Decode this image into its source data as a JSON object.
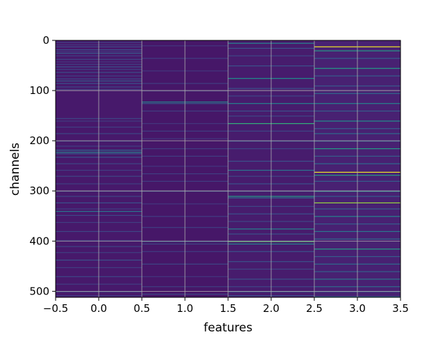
{
  "chart_data": {
    "type": "heatmap",
    "colormap": "viridis",
    "xlabel": "features",
    "ylabel": "channels",
    "xlim": [
      -0.5,
      3.5
    ],
    "ylim": [
      512,
      0
    ],
    "n_channels": 512,
    "n_features": 4,
    "grid": true,
    "x_ticks": [
      -0.5,
      0.0,
      0.5,
      1.0,
      1.5,
      2.0,
      2.5,
      3.0,
      3.5
    ],
    "x_tick_labels": [
      "−0.5",
      "0.0",
      "0.5",
      "1.0",
      "1.5",
      "2.0",
      "2.5",
      "3.0",
      "3.5"
    ],
    "y_ticks": [
      0,
      100,
      200,
      300,
      400,
      500
    ],
    "y_tick_labels": [
      "0",
      "100",
      "200",
      "300",
      "400",
      "500"
    ],
    "columns": [
      {
        "feature": 0,
        "base_value": 0.09,
        "bands": [
          [
            3,
            0.2
          ],
          [
            8,
            0.18
          ],
          [
            12,
            0.22
          ],
          [
            18,
            0.25
          ],
          [
            22,
            0.2
          ],
          [
            25,
            0.28
          ],
          [
            30,
            0.2
          ],
          [
            37,
            0.22
          ],
          [
            42,
            0.18
          ],
          [
            47,
            0.2
          ],
          [
            52,
            0.25
          ],
          [
            57,
            0.2
          ],
          [
            63,
            0.24
          ],
          [
            70,
            0.2
          ],
          [
            76,
            0.22
          ],
          [
            80,
            0.3
          ],
          [
            85,
            0.25
          ],
          [
            92,
            0.22
          ],
          [
            97,
            0.2
          ],
          [
            155,
            0.22
          ],
          [
            160,
            0.2
          ],
          [
            172,
            0.2
          ],
          [
            185,
            0.22
          ],
          [
            200,
            0.2
          ],
          [
            210,
            0.2
          ],
          [
            218,
            0.35
          ],
          [
            222,
            0.45
          ],
          [
            225,
            0.3
          ],
          [
            232,
            0.25
          ],
          [
            245,
            0.22
          ],
          [
            258,
            0.2
          ],
          [
            270,
            0.22
          ],
          [
            285,
            0.2
          ],
          [
            300,
            0.2
          ],
          [
            310,
            0.22
          ],
          [
            323,
            0.25
          ],
          [
            335,
            0.2
          ],
          [
            340,
            0.4
          ],
          [
            348,
            0.22
          ],
          [
            362,
            0.2
          ],
          [
            380,
            0.22
          ],
          [
            398,
            0.2
          ],
          [
            410,
            0.22
          ],
          [
            422,
            0.2
          ],
          [
            437,
            0.25
          ],
          [
            452,
            0.2
          ],
          [
            470,
            0.22
          ],
          [
            485,
            0.2
          ],
          [
            500,
            0.25
          ],
          [
            508,
            0.2
          ]
        ]
      },
      {
        "feature": 1,
        "base_value": 0.08,
        "bands": [
          [
            10,
            0.18
          ],
          [
            35,
            0.2
          ],
          [
            60,
            0.18
          ],
          [
            85,
            0.2
          ],
          [
            100,
            0.18
          ],
          [
            122,
            0.45
          ],
          [
            125,
            0.3
          ],
          [
            140,
            0.2
          ],
          [
            165,
            0.18
          ],
          [
            180,
            0.2
          ],
          [
            195,
            0.18
          ],
          [
            215,
            0.2
          ],
          [
            230,
            0.2
          ],
          [
            250,
            0.18
          ],
          [
            265,
            0.2
          ],
          [
            280,
            0.2
          ],
          [
            300,
            0.22
          ],
          [
            325,
            0.18
          ],
          [
            350,
            0.2
          ],
          [
            372,
            0.2
          ],
          [
            400,
            0.3
          ],
          [
            405,
            0.22
          ],
          [
            420,
            0.2
          ],
          [
            445,
            0.22
          ],
          [
            470,
            0.18
          ],
          [
            490,
            0.2
          ],
          [
            505,
            0.22
          ]
        ]
      },
      {
        "feature": 2,
        "base_value": 0.1,
        "bands": [
          [
            5,
            0.45
          ],
          [
            15,
            0.25
          ],
          [
            30,
            0.22
          ],
          [
            50,
            0.25
          ],
          [
            75,
            0.5
          ],
          [
            95,
            0.25
          ],
          [
            110,
            0.22
          ],
          [
            125,
            0.45
          ],
          [
            140,
            0.25
          ],
          [
            150,
            0.22
          ],
          [
            165,
            0.65
          ],
          [
            180,
            0.22
          ],
          [
            200,
            0.25
          ],
          [
            215,
            0.22
          ],
          [
            240,
            0.25
          ],
          [
            258,
            0.4
          ],
          [
            270,
            0.22
          ],
          [
            285,
            0.25
          ],
          [
            300,
            0.22
          ],
          [
            310,
            0.55
          ],
          [
            313,
            0.35
          ],
          [
            330,
            0.22
          ],
          [
            345,
            0.25
          ],
          [
            360,
            0.22
          ],
          [
            375,
            0.45
          ],
          [
            385,
            0.25
          ],
          [
            400,
            0.72
          ],
          [
            405,
            0.45
          ],
          [
            420,
            0.25
          ],
          [
            440,
            0.25
          ],
          [
            455,
            0.22
          ],
          [
            475,
            0.25
          ],
          [
            490,
            0.22
          ],
          [
            500,
            0.3
          ],
          [
            508,
            0.25
          ]
        ]
      },
      {
        "feature": 3,
        "base_value": 0.12,
        "bands": [
          [
            12,
            0.98
          ],
          [
            20,
            0.55
          ],
          [
            35,
            0.3
          ],
          [
            55,
            0.55
          ],
          [
            70,
            0.3
          ],
          [
            90,
            0.28
          ],
          [
            105,
            0.35
          ],
          [
            125,
            0.45
          ],
          [
            140,
            0.3
          ],
          [
            160,
            0.5
          ],
          [
            175,
            0.3
          ],
          [
            185,
            0.35
          ],
          [
            200,
            0.3
          ],
          [
            215,
            0.55
          ],
          [
            230,
            0.3
          ],
          [
            245,
            0.35
          ],
          [
            262,
            0.98
          ],
          [
            268,
            0.55
          ],
          [
            280,
            0.3
          ],
          [
            300,
            0.5
          ],
          [
            310,
            0.3
          ],
          [
            323,
            0.85
          ],
          [
            335,
            0.3
          ],
          [
            350,
            0.45
          ],
          [
            365,
            0.3
          ],
          [
            380,
            0.4
          ],
          [
            395,
            0.35
          ],
          [
            415,
            0.55
          ],
          [
            430,
            0.3
          ],
          [
            445,
            0.35
          ],
          [
            460,
            0.3
          ],
          [
            475,
            0.4
          ],
          [
            490,
            0.35
          ],
          [
            500,
            0.3
          ],
          [
            510,
            0.35
          ]
        ]
      }
    ]
  }
}
